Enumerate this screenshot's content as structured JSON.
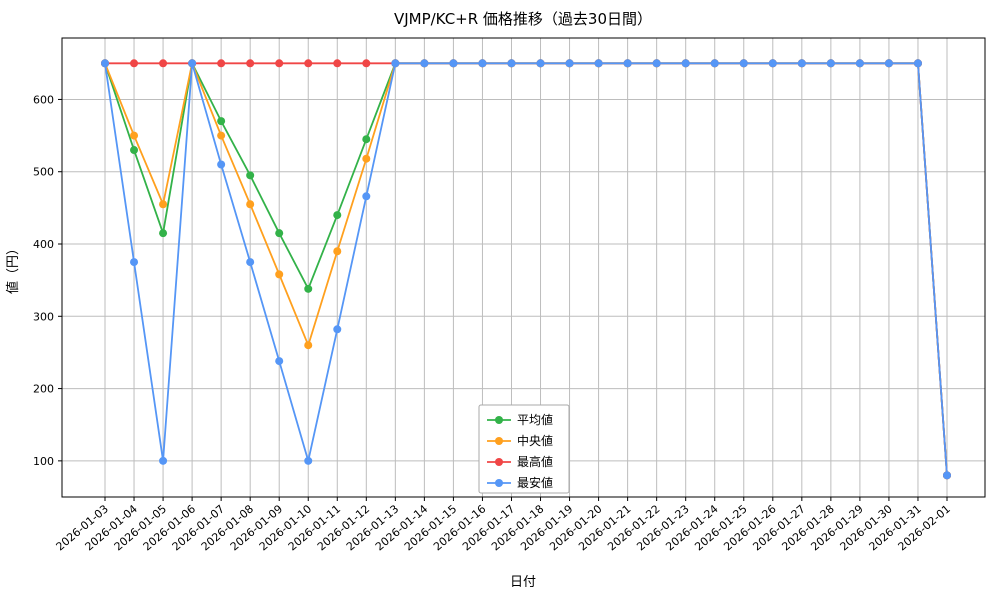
{
  "chart_data": {
    "type": "line",
    "title": "VJMP/KC+R 価格推移（過去30日間）",
    "xlabel": "日付",
    "ylabel": "値（円）",
    "x": [
      "2026-01-03",
      "2026-01-04",
      "2026-01-05",
      "2026-01-06",
      "2026-01-07",
      "2026-01-08",
      "2026-01-09",
      "2026-01-10",
      "2026-01-11",
      "2026-01-12",
      "2026-01-13",
      "2026-01-14",
      "2026-01-15",
      "2026-01-16",
      "2026-01-17",
      "2026-01-18",
      "2026-01-19",
      "2026-01-20",
      "2026-01-21",
      "2026-01-22",
      "2026-01-23",
      "2026-01-24",
      "2026-01-25",
      "2026-01-26",
      "2026-01-27",
      "2026-01-28",
      "2026-01-29",
      "2026-01-30",
      "2026-01-31",
      "2026-02-01"
    ],
    "series": [
      {
        "name": "平均値",
        "color": "#33b249",
        "values": [
          650,
          530,
          415,
          650,
          570,
          495,
          415,
          338,
          440,
          545,
          650,
          650,
          650,
          650,
          650,
          650,
          650,
          650,
          650,
          650,
          650,
          650,
          650,
          650,
          650,
          650,
          650,
          650,
          650,
          80
        ]
      },
      {
        "name": "中央値",
        "color": "#ffa01e",
        "values": [
          650,
          550,
          455,
          650,
          550,
          455,
          358,
          260,
          390,
          518,
          650,
          650,
          650,
          650,
          650,
          650,
          650,
          650,
          650,
          650,
          650,
          650,
          650,
          650,
          650,
          650,
          650,
          650,
          650,
          80
        ]
      },
      {
        "name": "最高値",
        "color": "#f04646",
        "values": [
          650,
          650,
          650,
          650,
          650,
          650,
          650,
          650,
          650,
          650,
          650,
          650,
          650,
          650,
          650,
          650,
          650,
          650,
          650,
          650,
          650,
          650,
          650,
          650,
          650,
          650,
          650,
          650,
          650,
          80
        ]
      },
      {
        "name": "最安値",
        "color": "#5596f6",
        "values": [
          650,
          375,
          100,
          650,
          510,
          375,
          238,
          100,
          282,
          466,
          650,
          650,
          650,
          650,
          650,
          650,
          650,
          650,
          650,
          650,
          650,
          650,
          650,
          650,
          650,
          650,
          650,
          650,
          650,
          80
        ]
      }
    ],
    "yticks": [
      100,
      200,
      300,
      400,
      500,
      600
    ],
    "ylim": [
      50,
      685
    ],
    "grid": true,
    "legend_position": "lower-center",
    "xtick_rotation": 40,
    "marker": "circle"
  }
}
